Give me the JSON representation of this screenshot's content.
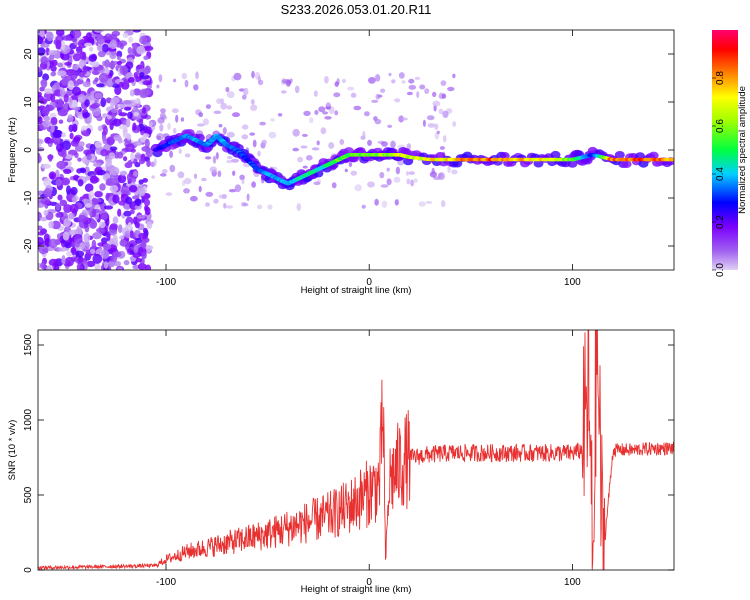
{
  "title": "S233.2026.053.01.20.R11",
  "chart_data": [
    {
      "type": "heatmap",
      "xlabel": "Height of straight line (km)",
      "ylabel": "Frequency (Hz)",
      "xlim": [
        -163,
        150
      ],
      "ylim": [
        -25,
        25
      ],
      "x_ticks": [
        -100,
        0,
        100
      ],
      "y_ticks": [
        -20,
        -10,
        0,
        10,
        20
      ],
      "colorbar": {
        "label": "Normalized spectral amplitude",
        "range": [
          0,
          1
        ],
        "ticks": [
          0.0,
          0.2,
          0.4,
          0.6,
          0.8
        ],
        "tick_labels": [
          "0.0",
          "0.2",
          "0.4",
          "0.6",
          "0.8"
        ],
        "colors": [
          "#e0d0f5",
          "#7b00ff",
          "#0000ff",
          "#00e0ff",
          "#00ff40",
          "#c8ff00",
          "#ffff00",
          "#ff8000",
          "#ff0000",
          "#ff0080"
        ]
      },
      "ridge": {
        "x": [
          -105,
          -100,
          -95,
          -90,
          -85,
          -80,
          -75,
          -70,
          -65,
          -60,
          -55,
          -50,
          -45,
          -40,
          -35,
          -30,
          -25,
          -20,
          -15,
          -10,
          -5,
          0,
          5,
          10,
          15,
          20,
          30,
          40,
          50,
          60,
          70,
          80,
          90,
          100,
          105,
          110,
          120,
          130,
          140,
          150
        ],
        "y": [
          0,
          1,
          2,
          3,
          2,
          1,
          3,
          1,
          0,
          -2,
          -4,
          -5,
          -6,
          -7,
          -6,
          -5,
          -4,
          -3,
          -2,
          -1,
          -1,
          -1,
          -1,
          -1,
          -1,
          -1.5,
          -2,
          -2,
          -2,
          -2,
          -2,
          -2,
          -2,
          -2,
          -1.5,
          -1,
          -2,
          -2,
          -2,
          -2
        ],
        "amplitude": [
          0.25,
          0.3,
          0.35,
          0.38,
          0.4,
          0.38,
          0.42,
          0.38,
          0.35,
          0.3,
          0.35,
          0.38,
          0.4,
          0.42,
          0.45,
          0.5,
          0.45,
          0.5,
          0.6,
          0.55,
          0.6,
          0.6,
          0.62,
          0.65,
          0.7,
          0.7,
          0.75,
          0.78,
          0.85,
          0.9,
          0.85,
          0.8,
          0.7,
          0.6,
          0.45,
          0.3,
          0.9,
          0.9,
          0.88,
          0.88
        ]
      }
    },
    {
      "type": "line",
      "xlabel": "Height of straight line (km)",
      "ylabel": "SNR (10 * v/v)",
      "xlim": [
        -163,
        150
      ],
      "ylim": [
        0,
        1600
      ],
      "x_ticks": [
        -100,
        0,
        100
      ],
      "y_ticks": [
        0,
        500,
        1000,
        1500
      ],
      "series": [
        {
          "name": "SNR",
          "color": "#e83030",
          "x": [
            -163,
            -140,
            -120,
            -105,
            -100,
            -90,
            -80,
            -70,
            -60,
            -50,
            -40,
            -30,
            -20,
            -10,
            -5,
            0,
            5,
            7,
            8,
            10,
            15,
            20,
            25,
            30,
            40,
            50,
            60,
            70,
            80,
            90,
            100,
            105,
            108,
            110,
            112,
            115,
            120,
            130,
            140,
            150
          ],
          "y": [
            15,
            20,
            25,
            30,
            70,
            120,
            150,
            180,
            210,
            240,
            280,
            320,
            360,
            420,
            470,
            520,
            580,
            1080,
            40,
            600,
            700,
            750,
            760,
            770,
            780,
            780,
            780,
            780,
            780,
            780,
            780,
            800,
            1200,
            20,
            1600,
            60,
            800,
            800,
            810,
            810
          ]
        }
      ]
    }
  ]
}
